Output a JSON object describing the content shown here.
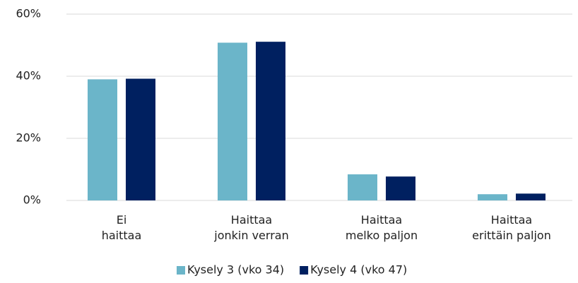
{
  "chart_data": {
    "type": "bar",
    "categories": [
      [
        "Ei",
        "haittaa"
      ],
      [
        "Haittaa",
        "jonkin verran"
      ],
      [
        "Haittaa",
        "melko paljon"
      ],
      [
        "Haittaa",
        "erittäin paljon"
      ]
    ],
    "series": [
      {
        "name": "Kysely 3 (vko 34)",
        "color": "#6bb5c9",
        "values": [
          39.0,
          50.8,
          8.4,
          2.0
        ]
      },
      {
        "name": "Kysely 4 (vko 47)",
        "color": "#002060",
        "values": [
          39.2,
          51.1,
          7.7,
          2.2
        ]
      }
    ],
    "ylim": [
      0,
      60
    ],
    "yticks": [
      {
        "value": 0,
        "label": "0%"
      },
      {
        "value": 20,
        "label": "20%"
      },
      {
        "value": 40,
        "label": "40%"
      },
      {
        "value": 60,
        "label": "60%"
      }
    ],
    "grid": true,
    "legend": "bottom"
  }
}
